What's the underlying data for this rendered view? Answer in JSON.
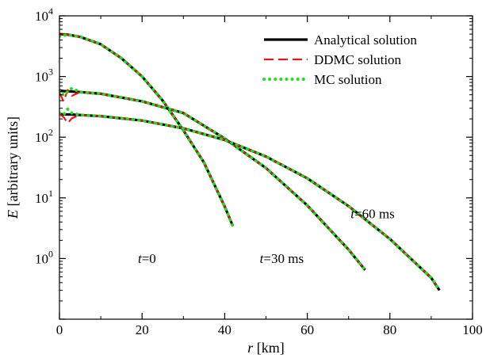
{
  "chart_data": {
    "type": "line",
    "title": "",
    "xlabel": {
      "var": "r",
      "unit": " [km]"
    },
    "ylabel": {
      "var": "E",
      "unit": " [arbitrary units]"
    },
    "xlim": [
      0,
      100
    ],
    "ylim": [
      0.1,
      10000
    ],
    "yscale": "log",
    "grid": false,
    "legend_position": "top-right",
    "x_ticks": [
      "0",
      "20",
      "40",
      "60",
      "80",
      "100"
    ],
    "y_ticks": [
      {
        "base": "10",
        "exp": "-1",
        "value": 0.1
      },
      {
        "base": "10",
        "exp": "0",
        "value": 1
      },
      {
        "base": "10",
        "exp": "1",
        "value": 10
      },
      {
        "base": "10",
        "exp": "2",
        "value": 100
      },
      {
        "base": "10",
        "exp": "3",
        "value": 1000
      },
      {
        "base": "10",
        "exp": "4",
        "value": 10000
      }
    ],
    "series": [
      {
        "name": "Analytical solution",
        "color": "#000000",
        "style": "solid"
      },
      {
        "name": "DDMC solution",
        "color": "#e8161b",
        "style": "dashed"
      },
      {
        "name": "MC solution",
        "color": "#22dd22",
        "style": "dotted"
      }
    ],
    "curves": [
      {
        "time_label": {
          "var": "t",
          "rest": "=0"
        },
        "x": [
          0,
          2,
          5,
          10,
          15,
          20,
          25,
          30,
          35,
          40,
          42
        ],
        "analytical": [
          5000,
          4900,
          4500,
          3400,
          2000,
          1000,
          400,
          130,
          38,
          7.2,
          3.4
        ],
        "ddmc": [
          5000,
          4900,
          4500,
          3400,
          2000,
          1000,
          400,
          130,
          38,
          7.2,
          3.4
        ],
        "mc": [
          4600,
          4900,
          4500,
          3400,
          2000,
          1000,
          400,
          130,
          38,
          7.2,
          3.4
        ]
      },
      {
        "time_label": {
          "var": "t",
          "rest": "=30 ms"
        },
        "x": [
          0,
          1,
          2,
          3,
          5,
          10,
          20,
          30,
          40,
          50,
          60,
          70,
          74
        ],
        "analytical": [
          580,
          575,
          570,
          565,
          555,
          520,
          390,
          250,
          95,
          31,
          7.5,
          1.4,
          0.65
        ],
        "ddmc": [
          540,
          390,
          600,
          480,
          555,
          520,
          390,
          250,
          95,
          31,
          7.5,
          1.4,
          0.65
        ],
        "mc": [
          600,
          490,
          560,
          640,
          555,
          520,
          390,
          250,
          95,
          31,
          7.5,
          1.4,
          0.65
        ]
      },
      {
        "time_label": {
          "var": "t",
          "rest": "=60 ms"
        },
        "x": [
          0,
          1,
          2,
          3,
          5,
          10,
          20,
          30,
          40,
          50,
          60,
          70,
          80,
          90,
          92
        ],
        "analytical": [
          240,
          238,
          237,
          236,
          232,
          222,
          188,
          140,
          90,
          48,
          21,
          7.3,
          2.1,
          0.48,
          0.3
        ],
        "ddmc": [
          240,
          215,
          170,
          205,
          232,
          222,
          188,
          140,
          90,
          48,
          21,
          7.3,
          2.1,
          0.48,
          0.3
        ],
        "mc": [
          250,
          235,
          290,
          250,
          232,
          222,
          188,
          140,
          90,
          48,
          21,
          7.3,
          2.1,
          0.48,
          0.3
        ]
      }
    ],
    "annotations": [
      {
        "var": "t",
        "rest": "=0",
        "x": 19,
        "y": 0.85
      },
      {
        "var": "t",
        "rest": "=30 ms",
        "x": 48.5,
        "y": 0.85
      },
      {
        "var": "t",
        "rest": "=60 ms",
        "x": 70.5,
        "y": 4.6
      }
    ]
  }
}
